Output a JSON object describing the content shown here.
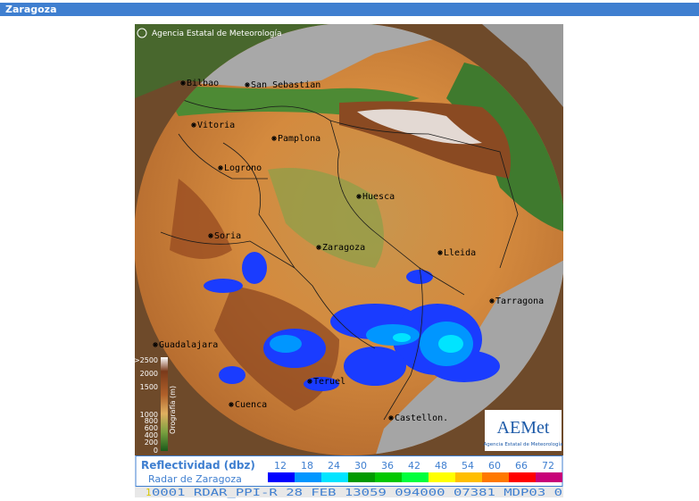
{
  "header": {
    "title": "Zaragoza"
  },
  "map": {
    "credit": "Agencia Estatal de Meteorología",
    "cities": [
      "Bilbao",
      "San Sebastian",
      "Vitoria",
      "Pamplona",
      "Logrono",
      "Huesca",
      "Soria",
      "Zaragoza",
      "Lleida",
      "Tarragona",
      "Guadalajara",
      "Teruel",
      "Cuenca",
      "Castellon."
    ]
  },
  "orography": {
    "title": "Orografía (m)",
    "levels": [
      ">2500",
      "2000",
      "1500",
      "1000",
      "800",
      "600",
      "400",
      "200",
      "0"
    ]
  },
  "legend": {
    "title": "Reflectividad (dbz)",
    "subtitle": "Radar de Zaragoza",
    "levels": [
      {
        "label": "12",
        "color": "#0000ff"
      },
      {
        "label": "18",
        "color": "#0096ff"
      },
      {
        "label": "24",
        "color": "#00e4ff"
      },
      {
        "label": "30",
        "color": "#009a00"
      },
      {
        "label": "36",
        "color": "#00c800"
      },
      {
        "label": "42",
        "color": "#00ff3c"
      },
      {
        "label": "48",
        "color": "#ffff00"
      },
      {
        "label": "54",
        "color": "#ffbe00"
      },
      {
        "label": "60",
        "color": "#ff7800"
      },
      {
        "label": "66",
        "color": "#ff0000"
      },
      {
        "label": "72",
        "color": "#c80078"
      }
    ]
  },
  "logo": {
    "name": "AEMet",
    "subtitle": "Agencia Estatal de Meteorología"
  },
  "status": {
    "marker": "1",
    "text": "0001 RDAR_PPI-R   28 FEB 13059 094000 07381 MDP03 0"
  }
}
